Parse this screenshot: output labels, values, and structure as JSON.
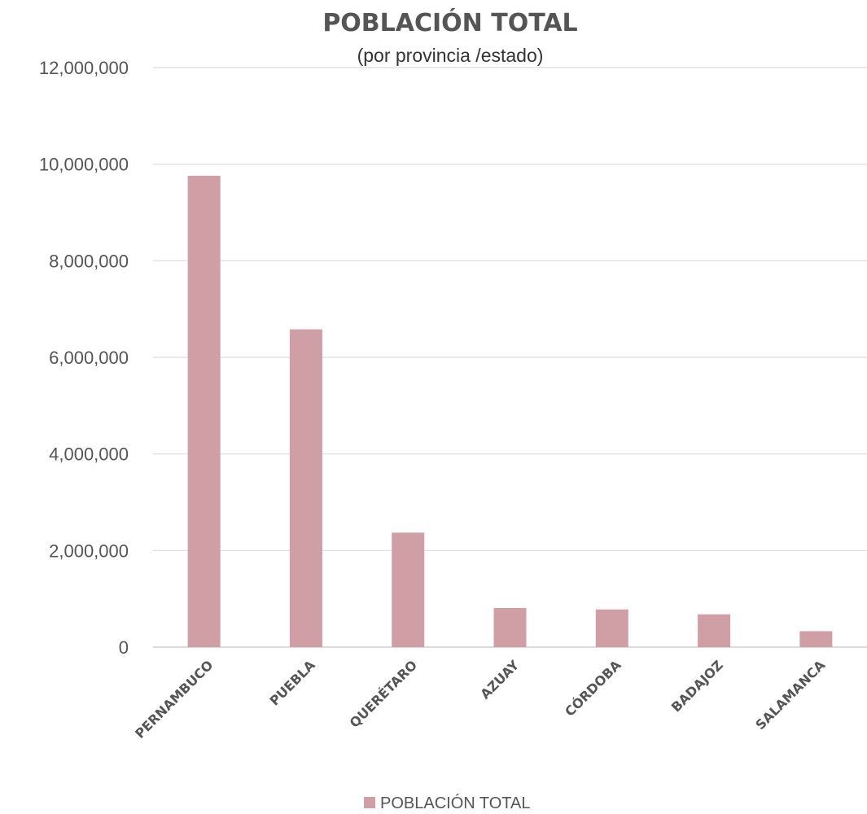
{
  "chart_data": {
    "type": "bar",
    "title": "POBLACIÓN TOTAL",
    "subtitle": "(por provincia /estado)",
    "categories": [
      "PERNAMBUCO",
      "PUEBLA",
      "QUERÉTARO",
      "AZUAY",
      "CÓRDOBA",
      "BADAJOZ",
      "SALAMANCA"
    ],
    "series": [
      {
        "name": "POBLACIÓN TOTAL",
        "color": "#cf9fa5",
        "values": [
          9760000,
          6580000,
          2370000,
          810000,
          780000,
          680000,
          330000
        ]
      }
    ],
    "ylim": [
      0,
      12000000
    ],
    "yticks": [
      0,
      2000000,
      4000000,
      6000000,
      8000000,
      10000000,
      12000000
    ],
    "ytick_labels": [
      "0",
      "2,000,000",
      "4,000,000",
      "6,000,000",
      "8,000,000",
      "10,000,000",
      "12,000,000"
    ],
    "grid": true,
    "legend": "bottom"
  }
}
